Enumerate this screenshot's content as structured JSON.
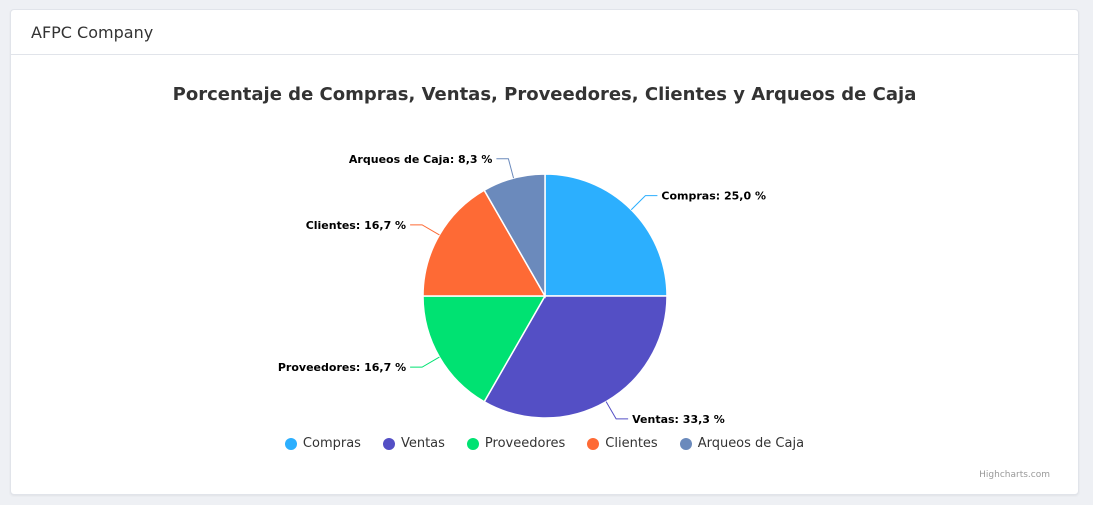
{
  "header": {
    "title": "AFPC Company"
  },
  "credits": "Highcharts.com",
  "chart_data": {
    "type": "pie",
    "title": "Porcentaje de Compras, Ventas, Proveedores, Clientes y Arqueos de Caja",
    "legend_position": "bottom-center",
    "slices": [
      {
        "name": "Compras",
        "value": 25.0,
        "label": "Compras: 25,0 %",
        "color": "#2caffe"
      },
      {
        "name": "Ventas",
        "value": 33.3,
        "label": "Ventas: 33,3 %",
        "color": "#544fc5"
      },
      {
        "name": "Proveedores",
        "value": 16.7,
        "label": "Proveedores: 16,7 %",
        "color": "#00e272"
      },
      {
        "name": "Clientes",
        "value": 16.7,
        "label": "Clientes: 16,7 %",
        "color": "#fe6a35"
      },
      {
        "name": "Arqueos de Caja",
        "value": 8.3,
        "label": "Arqueos de Caja: 8,3 %",
        "color": "#6b8abc"
      }
    ]
  }
}
